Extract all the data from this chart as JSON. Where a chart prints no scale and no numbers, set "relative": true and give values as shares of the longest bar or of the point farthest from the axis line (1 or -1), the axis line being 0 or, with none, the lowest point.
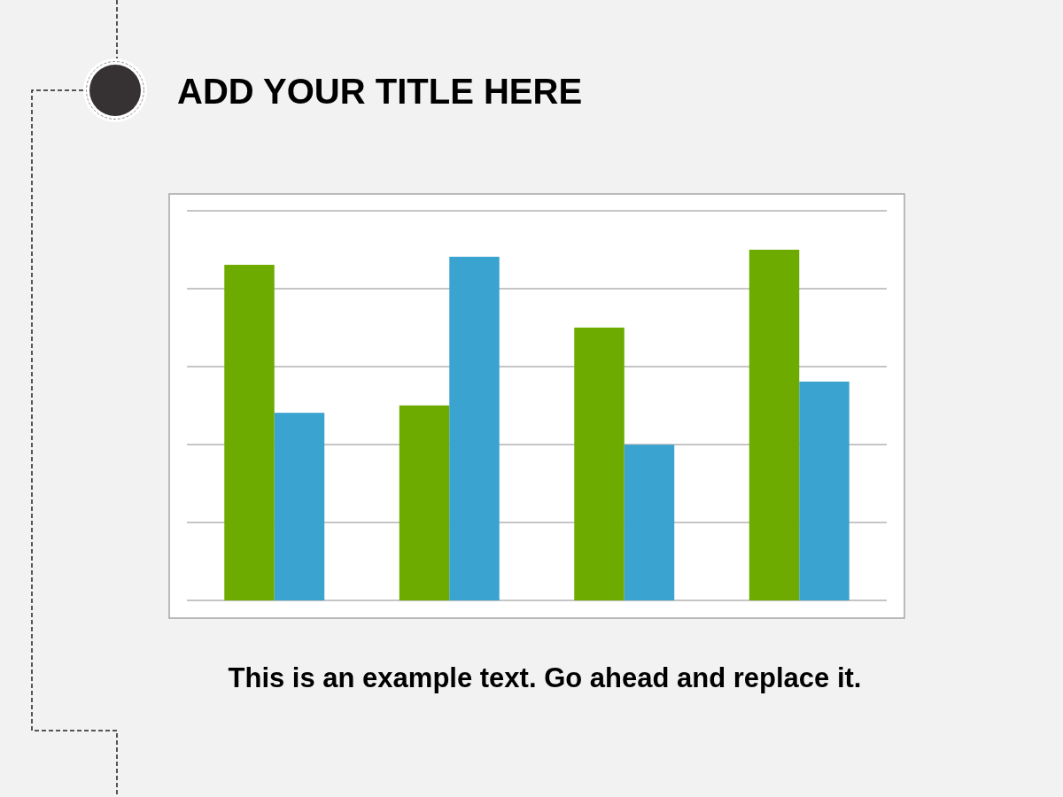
{
  "chart_data": {
    "type": "bar",
    "title": "ADD YOUR TITLE HERE",
    "annotations": [
      "This is an example text. Go ahead and replace it."
    ],
    "relative": true,
    "grid": true,
    "categories": [
      null,
      null,
      null,
      null
    ],
    "series": [
      {
        "color": "#6eab00",
        "values": [
          0.957,
          0.556,
          0.778,
          1
        ]
      },
      {
        "color": "#3ba3cf",
        "values": [
          0.535,
          0.98,
          0.444,
          0.624
        ]
      }
    ]
  }
}
